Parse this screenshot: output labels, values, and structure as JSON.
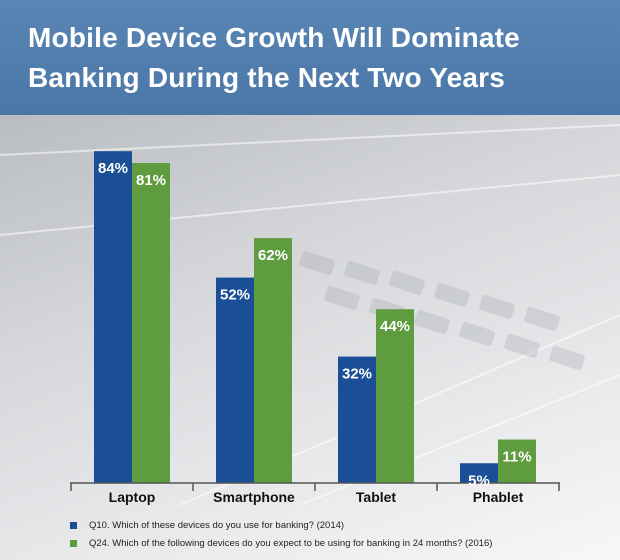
{
  "header": {
    "title_line1": "Mobile Device Growth Will Dominate",
    "title_line2": "Banking During the Next Two Years"
  },
  "colors": {
    "header_bg": "#4f7cae",
    "series_2014": "#1a4e96",
    "series_2016": "#5f9b3f"
  },
  "chart_data": {
    "type": "bar",
    "title": "Mobile Device Growth Will Dominate Banking During the Next Two Years",
    "categories": [
      "Laptop",
      "Smartphone",
      "Tablet",
      "Phablet"
    ],
    "series": [
      {
        "name": "Q10. Which of these devices do you use for banking? (2014)",
        "color": "#1a4e96",
        "values": [
          84,
          52,
          32,
          5
        ],
        "labels": [
          "84%",
          "52%",
          "32%",
          "5%"
        ]
      },
      {
        "name": "Q24. Which of the following devices do you expect to be using for banking in 24 months? (2016)",
        "color": "#5f9b3f",
        "values": [
          81,
          62,
          44,
          11
        ],
        "labels": [
          "81%",
          "62%",
          "44%",
          "11%"
        ]
      }
    ],
    "ylim": [
      0,
      100
    ],
    "xlabel": "",
    "ylabel": "",
    "grid": false,
    "legend_position": "bottom-left"
  }
}
